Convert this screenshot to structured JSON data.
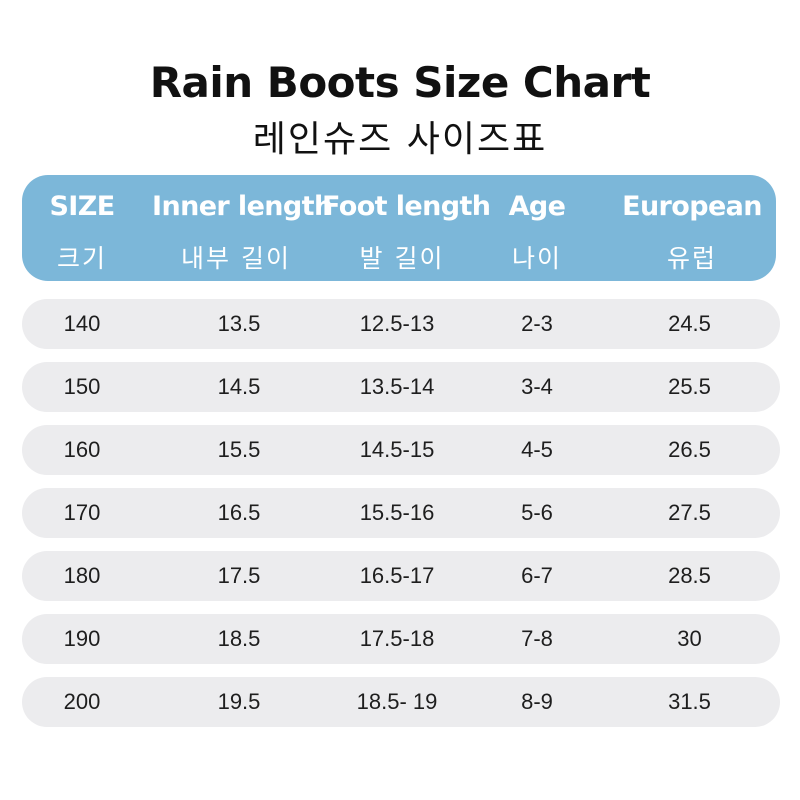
{
  "title": "Rain Boots Size Chart",
  "subtitle": "레인슈즈 사이즈표",
  "header": {
    "columns": [
      {
        "en": "SIZE",
        "ko": "크기"
      },
      {
        "en": "Inner length",
        "ko": "내부 길이"
      },
      {
        "en": "Foot length",
        "ko": "발 길이"
      },
      {
        "en": "Age",
        "ko": "나이"
      },
      {
        "en": "European",
        "ko": "유럽"
      }
    ]
  },
  "rows": [
    [
      "140",
      "13.5",
      "12.5-13",
      "2-3",
      "24.5"
    ],
    [
      "150",
      "14.5",
      "13.5-14",
      "3-4",
      "25.5"
    ],
    [
      "160",
      "15.5",
      "14.5-15",
      "4-5",
      "26.5"
    ],
    [
      "170",
      "16.5",
      "15.5-16",
      "5-6",
      "27.5"
    ],
    [
      "180",
      "17.5",
      "16.5-17",
      "6-7",
      "28.5"
    ],
    [
      "190",
      "18.5",
      "17.5-18",
      "7-8",
      "30"
    ],
    [
      "200",
      "19.5",
      "18.5- 19",
      "8-9",
      "31.5"
    ]
  ],
  "colors": {
    "header_bg": "#7cb7d9",
    "row_bg": "#ececee"
  }
}
